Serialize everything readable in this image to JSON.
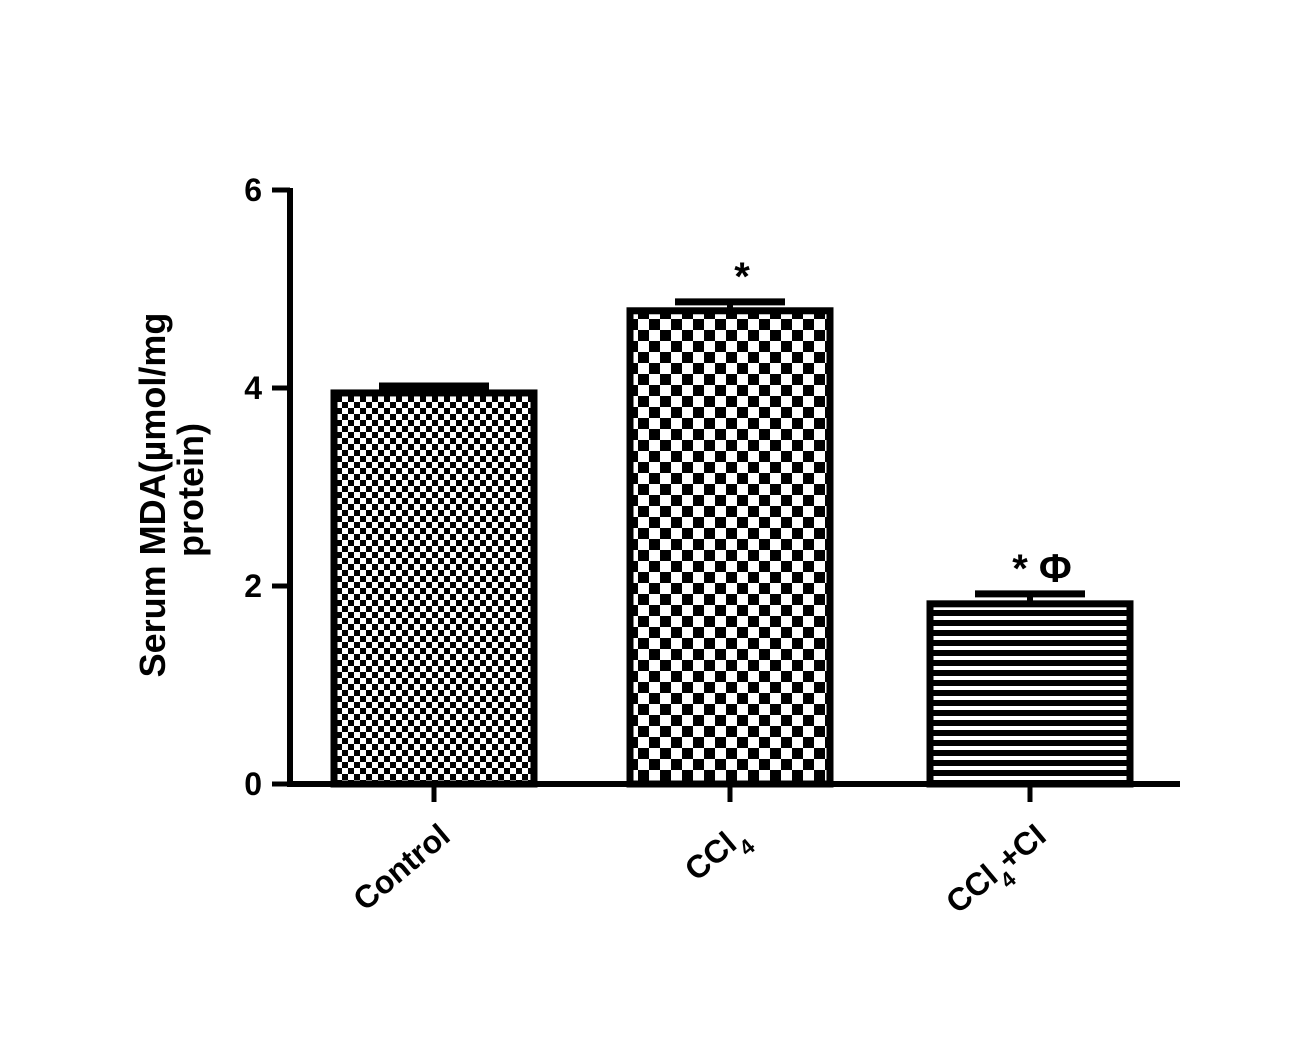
{
  "chart_data": {
    "type": "bar",
    "title": "",
    "xlabel": "",
    "ylabel_lines": [
      "Serum MDA(µmol/mg",
      "protein)"
    ],
    "ylim": [
      0,
      6
    ],
    "yticks": [
      "0",
      "2",
      "4",
      "6"
    ],
    "grid": false,
    "categories": [
      {
        "base": "Control",
        "sub": "",
        "tail": ""
      },
      {
        "base": "CCl",
        "sub": "4",
        "tail": ""
      },
      {
        "base": "CCl",
        "sub": "4",
        "tail": "+CI"
      }
    ],
    "values": [
      3.95,
      4.78,
      1.82
    ],
    "errors": [
      0.07,
      0.09,
      0.1
    ],
    "annotations": [
      "",
      "*",
      "* Φ"
    ],
    "patterns": [
      "fine-checker",
      "coarse-checker",
      "horizontal-lines"
    ],
    "colors": {
      "ink": "#000000",
      "background": "#ffffff"
    }
  }
}
